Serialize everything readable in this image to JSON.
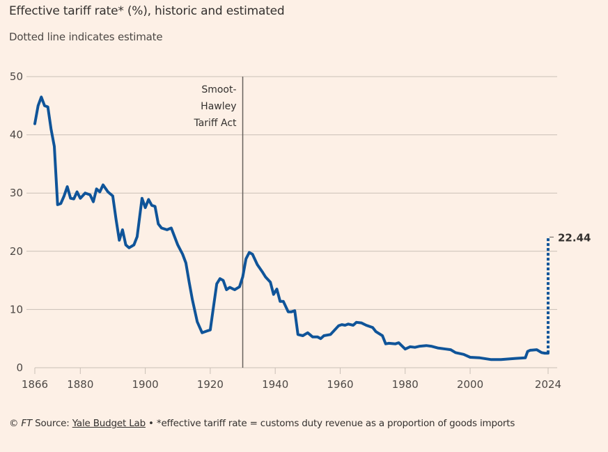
{
  "header": {
    "title": "Effective tariff rate* (%), historic and estimated",
    "subtitle": "Dotted line indicates estimate"
  },
  "footer": {
    "copyright": "© ",
    "ft": "FT",
    "source_prefix": " Source: ",
    "source_link": "Yale Budget Lab",
    "note": " • *effective tariff rate = customs duty revenue as a proportion of goods imports"
  },
  "colors": {
    "background": "#fdf0e6",
    "line": "#0f5499",
    "grid": "#c9bfb6",
    "annotation_line": "#66605c"
  },
  "chart_data": {
    "type": "line",
    "title": "Effective tariff rate* (%), historic and estimated",
    "subtitle": "Dotted line indicates estimate",
    "xlabel": "",
    "ylabel": "",
    "xlim": [
      1866,
      2024
    ],
    "ylim": [
      0,
      50
    ],
    "grid": true,
    "x_ticks": [
      1866,
      1880,
      1900,
      1920,
      1940,
      1960,
      1980,
      2000,
      2024
    ],
    "x_tick_labels": [
      "1866",
      "1880",
      "1900",
      "1920",
      "1940",
      "1960",
      "1980",
      "2000",
      "2024"
    ],
    "y_ticks": [
      0,
      10,
      20,
      30,
      40,
      50
    ],
    "y_tick_labels": [
      "0",
      "10",
      "20",
      "30",
      "40",
      "50"
    ],
    "series": [
      {
        "name": "Historic",
        "style": "solid",
        "x": [
          1866,
          1867,
          1868,
          1869,
          1870,
          1871,
          1872,
          1873,
          1874,
          1875,
          1876,
          1877,
          1878,
          1879,
          1880,
          1881.5,
          1883,
          1884,
          1885,
          1886,
          1887,
          1888.5,
          1890,
          1891,
          1892,
          1893,
          1894,
          1895,
          1896.5,
          1897.5,
          1899,
          1900,
          1901,
          1902,
          1903,
          1904,
          1905,
          1906.7,
          1908,
          1910,
          1911.5,
          1912.5,
          1913.5,
          1914.5,
          1916,
          1917.5,
          1919,
          1920,
          1921,
          1922,
          1923,
          1924,
          1925,
          1926,
          1927.5,
          1929,
          1930,
          1931,
          1932,
          1933,
          1934.5,
          1936,
          1937,
          1938.5,
          1939.5,
          1940.5,
          1941.5,
          1942.5,
          1944,
          1945,
          1946,
          1947,
          1948.5,
          1950,
          1951.5,
          1953,
          1954,
          1955,
          1957,
          1959.5,
          1960.5,
          1961.5,
          1962.5,
          1964,
          1965,
          1966.5,
          1968,
          1970,
          1971,
          1973,
          1974,
          1975,
          1977,
          1978,
          1980,
          1981.5,
          1983,
          1984.5,
          1986.5,
          1988,
          1990,
          1992.5,
          1994,
          1995.5,
          1998,
          2000,
          2003,
          2006.5,
          2009.5,
          2014,
          2017,
          2017.7,
          2018.5,
          2020.5,
          2022,
          2023,
          2024
        ],
        "values": [
          41.9,
          45,
          46.5,
          45,
          44.8,
          41,
          38,
          28,
          28.2,
          29.5,
          31.1,
          29.1,
          29,
          30.2,
          29.1,
          30,
          29.7,
          28.5,
          30.7,
          30.2,
          31.4,
          30.2,
          29.5,
          25.5,
          21.9,
          23.7,
          21.1,
          20.6,
          21.1,
          22.5,
          29.1,
          27.5,
          28.9,
          27.9,
          27.7,
          24.7,
          24,
          23.7,
          24,
          21.1,
          19.5,
          18,
          14.7,
          11.7,
          7.9,
          6,
          6.3,
          6.5,
          10.5,
          14.4,
          15.3,
          15,
          13.4,
          13.8,
          13.4,
          13.9,
          15.6,
          18.7,
          19.8,
          19.5,
          17.7,
          16.5,
          15.6,
          14.7,
          12.6,
          13.5,
          11.4,
          11.4,
          9.6,
          9.6,
          9.8,
          5.7,
          5.5,
          6,
          5.3,
          5.3,
          5,
          5.5,
          5.7,
          7.2,
          7.4,
          7.3,
          7.5,
          7.3,
          7.8,
          7.7,
          7.3,
          6.9,
          6.2,
          5.5,
          4.1,
          4.2,
          4.1,
          4.3,
          3.2,
          3.6,
          3.5,
          3.7,
          3.8,
          3.7,
          3.4,
          3.2,
          3.1,
          2.6,
          2.3,
          1.8,
          1.7,
          1.4,
          1.4,
          1.6,
          1.7,
          2.8,
          3,
          3.1,
          2.6,
          2.5,
          2.5
        ]
      },
      {
        "name": "Estimate",
        "style": "dotted",
        "x": [
          2024,
          2024
        ],
        "values": [
          2.5,
          22.44
        ]
      }
    ],
    "annotations": [
      {
        "type": "vline",
        "x": 1930,
        "label_lines": [
          "Smoot-",
          "Hawley",
          "Tariff Act"
        ]
      },
      {
        "type": "end_label",
        "x": 2024,
        "y": 22.44,
        "text": "22.44"
      }
    ]
  }
}
